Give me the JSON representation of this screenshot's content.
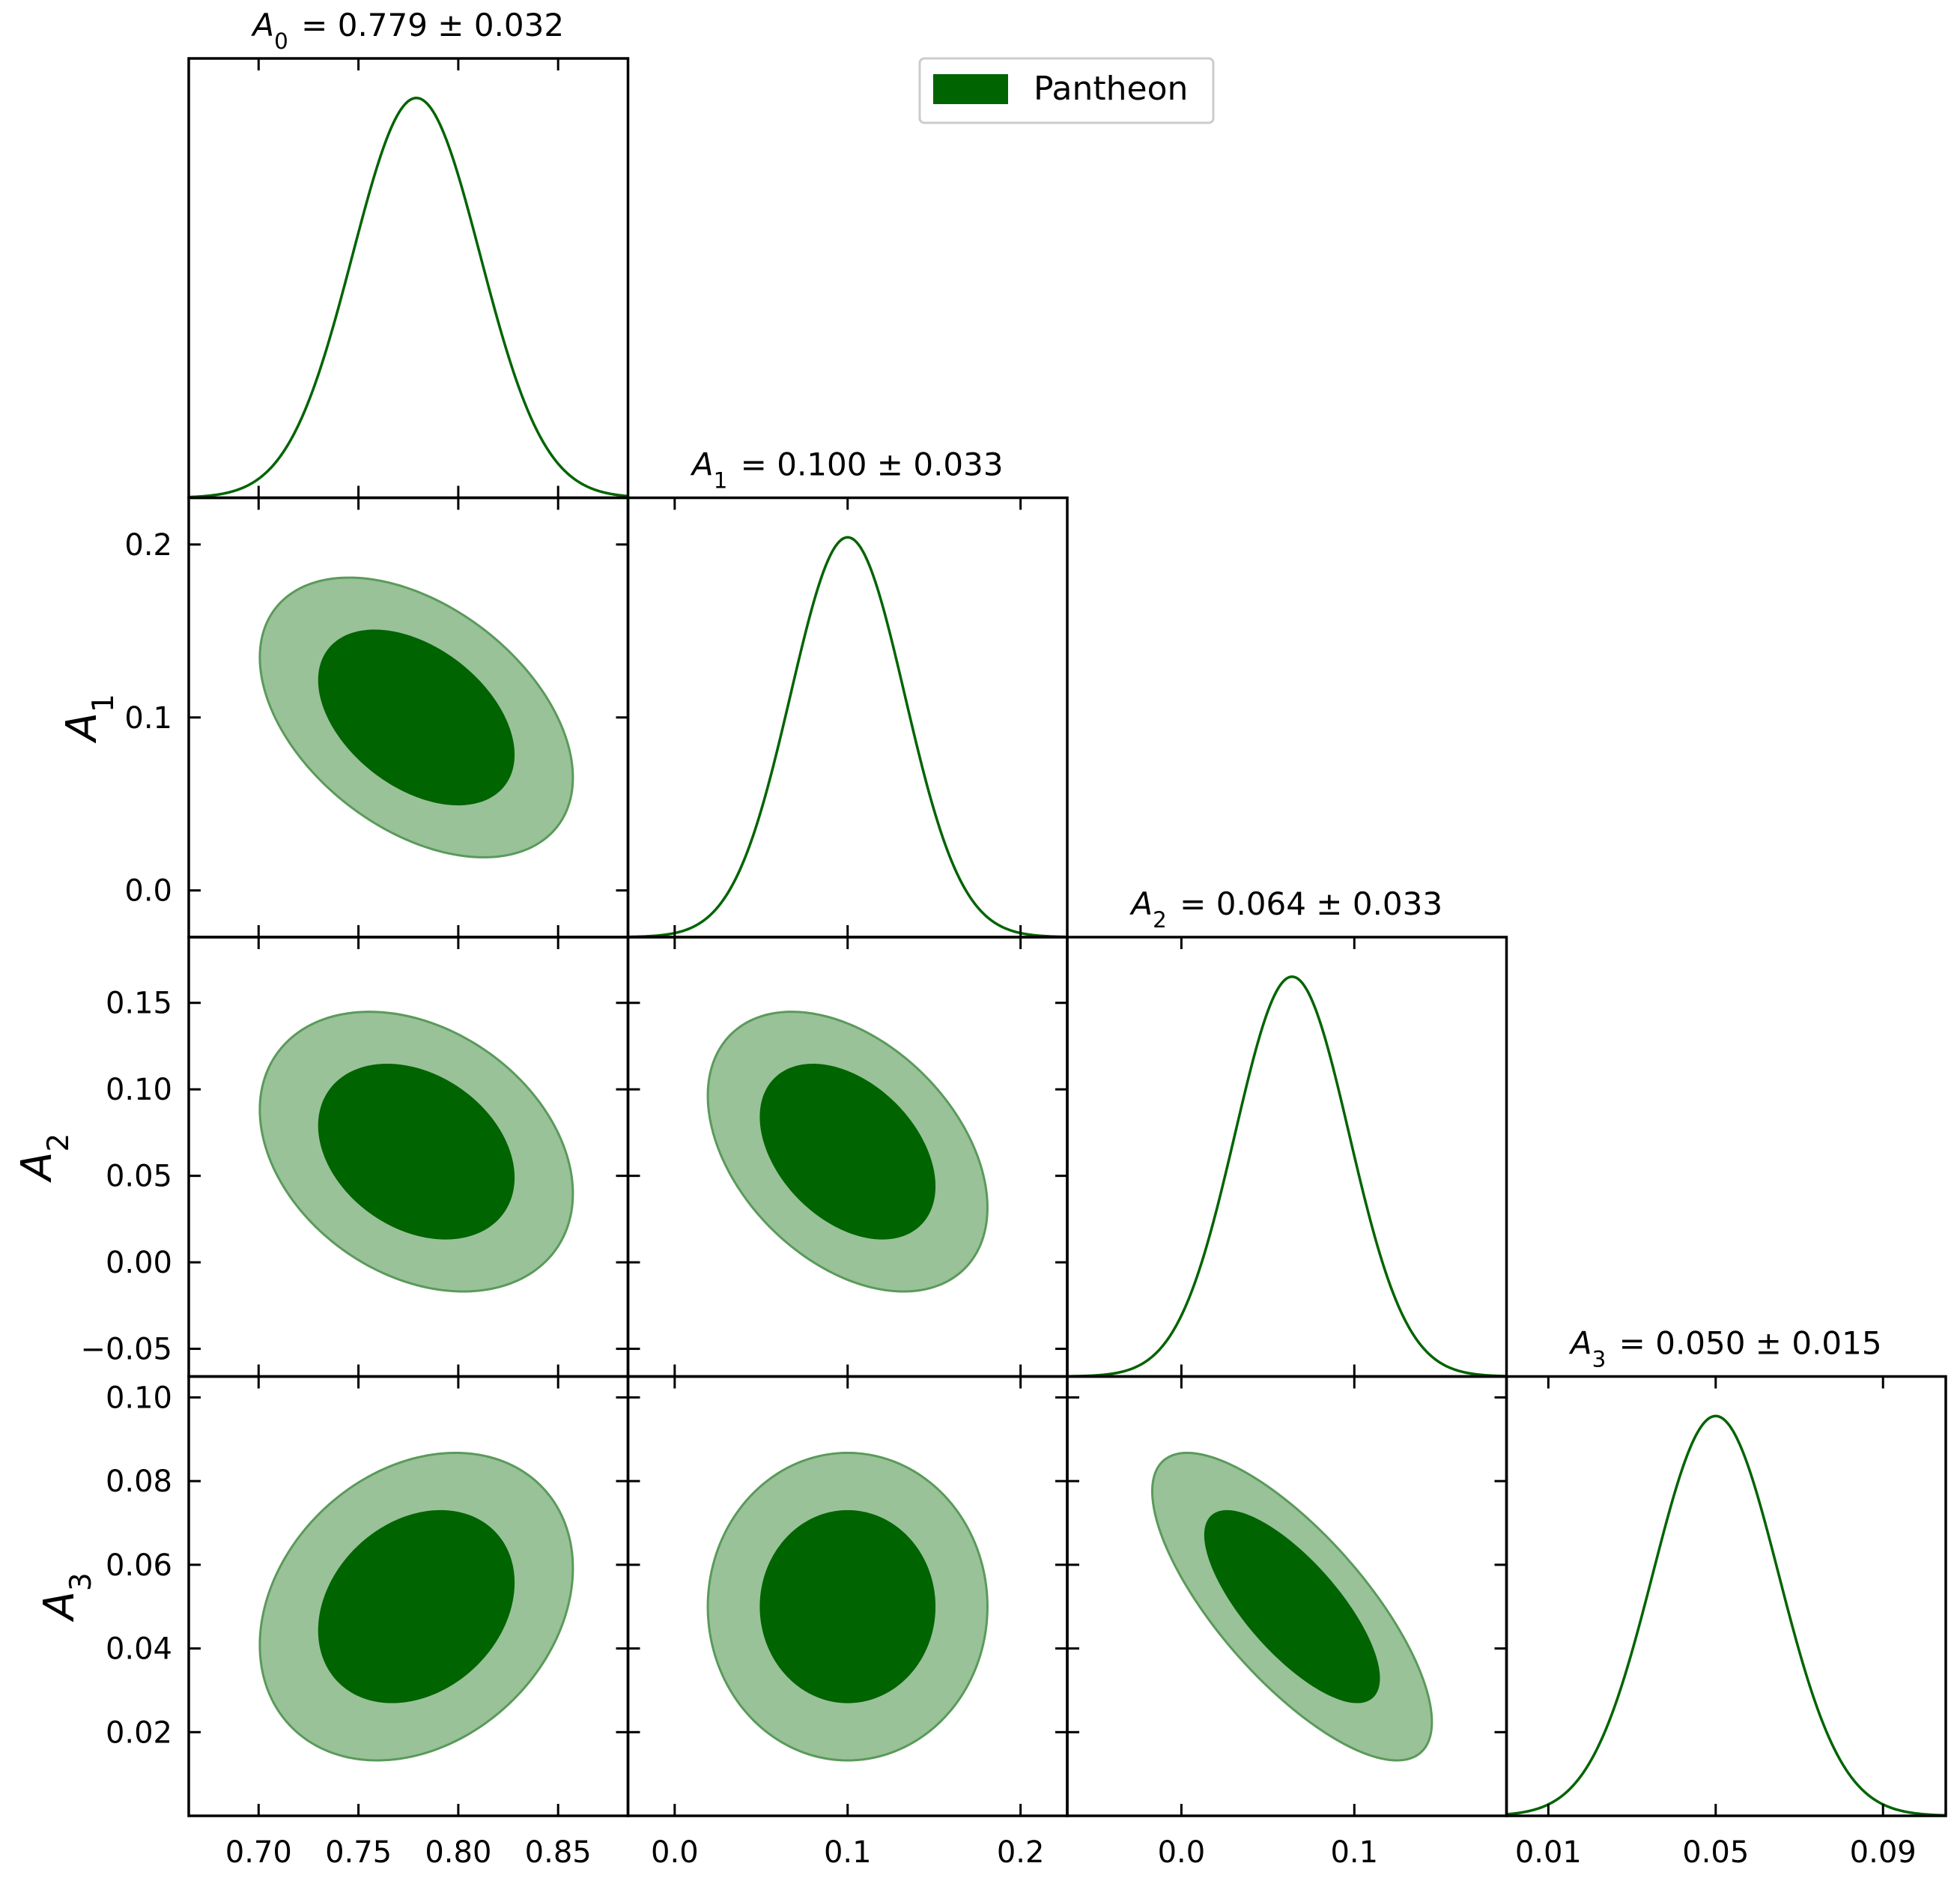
{
  "chart_data": {
    "type": "triangle-corner-plot",
    "legend": {
      "label": "Pantheon",
      "placement": "top-center",
      "color": "#006400"
    },
    "colors": {
      "line": "#006400",
      "inner_fill": "#006400",
      "outer_fill": "#99c299",
      "outer_edge": "#5a9a5a"
    },
    "confidence_levels": [
      "68%",
      "95%"
    ],
    "parameters": [
      {
        "symbol": "A",
        "sub": "0",
        "mean": 0.779,
        "sigma": 0.032,
        "title_value": "0.779 ± 0.032",
        "range": [
          0.665,
          0.885
        ],
        "ticks": [
          0.7,
          0.75,
          0.8,
          0.85
        ],
        "tick_labels": [
          "0.70",
          "0.75",
          "0.80",
          "0.85"
        ]
      },
      {
        "symbol": "A",
        "sub": "1",
        "mean": 0.1,
        "sigma": 0.033,
        "title_value": "0.100 ± 0.033",
        "range": [
          -0.027,
          0.227
        ],
        "ticks": [
          0.0,
          0.1,
          0.2
        ],
        "tick_labels": [
          "0.0",
          "0.1",
          "0.2"
        ]
      },
      {
        "symbol": "A",
        "sub": "2",
        "mean": 0.064,
        "sigma": 0.033,
        "title_value": "0.064 ± 0.033",
        "range": [
          -0.066,
          0.188
        ],
        "ticks": [
          0.0,
          0.1
        ],
        "tick_labels": [
          "0.0",
          "0.1"
        ],
        "y_ticks": [
          -0.05,
          0.0,
          0.05,
          0.1,
          0.15
        ],
        "y_tick_labels": [
          "−0.05",
          "0.00",
          "0.05",
          "0.10",
          "0.15"
        ]
      },
      {
        "symbol": "A",
        "sub": "3",
        "mean": 0.05,
        "sigma": 0.015,
        "title_value": "0.050 ± 0.015",
        "range": [
          0.0,
          0.105
        ],
        "ticks": [
          0.01,
          0.05,
          0.09
        ],
        "tick_labels": [
          "0.01",
          "0.05",
          "0.09"
        ],
        "y_ticks": [
          0.02,
          0.04,
          0.06,
          0.08,
          0.1
        ],
        "y_tick_labels": [
          "0.02",
          "0.04",
          "0.06",
          "0.08",
          "0.10"
        ]
      }
    ],
    "correlations": {
      "1-0": -0.43,
      "2-0": -0.3,
      "2-1": -0.4,
      "3-0": 0.25,
      "3-1": 0.0,
      "3-2": -0.75
    }
  }
}
